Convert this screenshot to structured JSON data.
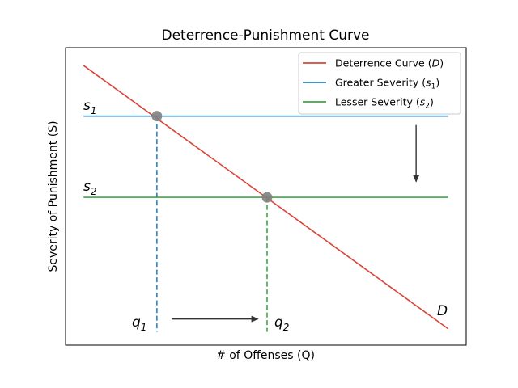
{
  "chart_data": {
    "type": "line",
    "title": "Deterrence-Punishment Curve",
    "xlabel": "# of Offenses (Q)",
    "ylabel": "Severity of Punishment (S)",
    "xlim": [
      0,
      10
    ],
    "ylim": [
      0,
      10
    ],
    "xticks_shown": false,
    "yticks_shown": false,
    "grid": false,
    "legend_position": "top-right",
    "series": [
      {
        "name": "Deterrence Curve (D)",
        "color": "#d9443a",
        "style": "solid",
        "x": [
          0.45,
          9.55
        ],
        "y": [
          9.4,
          0.55
        ]
      },
      {
        "name": "Greater Severity (s1)",
        "color": "#2b83be",
        "style": "solid",
        "x": [
          0.45,
          9.55
        ],
        "y": [
          7.7,
          7.7
        ]
      },
      {
        "name": "Lesser Severity (s2)",
        "color": "#3aa845",
        "style": "solid",
        "x": [
          0.45,
          9.55
        ],
        "y": [
          4.97,
          4.97
        ]
      }
    ],
    "drop_lines": [
      {
        "label": "q1",
        "x": 2.28,
        "y_top": 7.7,
        "y_bottom": 0.45,
        "color": "#2b83be"
      },
      {
        "label": "q2",
        "x": 5.03,
        "y_top": 4.97,
        "y_bottom": 0.45,
        "color": "#3aa845"
      }
    ],
    "intersections": [
      {
        "x": 2.28,
        "y": 7.7
      },
      {
        "x": 5.03,
        "y": 4.97
      }
    ],
    "annotations": {
      "s1": "s",
      "s1_sub": "1",
      "s2": "s",
      "s2_sub": "2",
      "q1": "q",
      "q1_sub": "1",
      "q2": "q",
      "q2_sub": "2",
      "D": "D"
    },
    "arrows": [
      {
        "name": "severity-decrease-arrow",
        "from": [
          8.75,
          7.4
        ],
        "to": [
          8.75,
          5.5
        ]
      },
      {
        "name": "offenses-increase-arrow",
        "from": [
          2.65,
          0.88
        ],
        "to": [
          4.8,
          0.88
        ]
      }
    ],
    "legend": [
      {
        "text": "Deterrence Curve (",
        "var": "D",
        "sub": "",
        "close": ")",
        "color": "#d9443a"
      },
      {
        "text": "Greater Severity (",
        "var": "s",
        "sub": "1",
        "close": ")",
        "color": "#2b83be"
      },
      {
        "text": "Lesser Severity (",
        "var": "s",
        "sub": "2",
        "close": ")",
        "color": "#3aa845"
      }
    ]
  }
}
